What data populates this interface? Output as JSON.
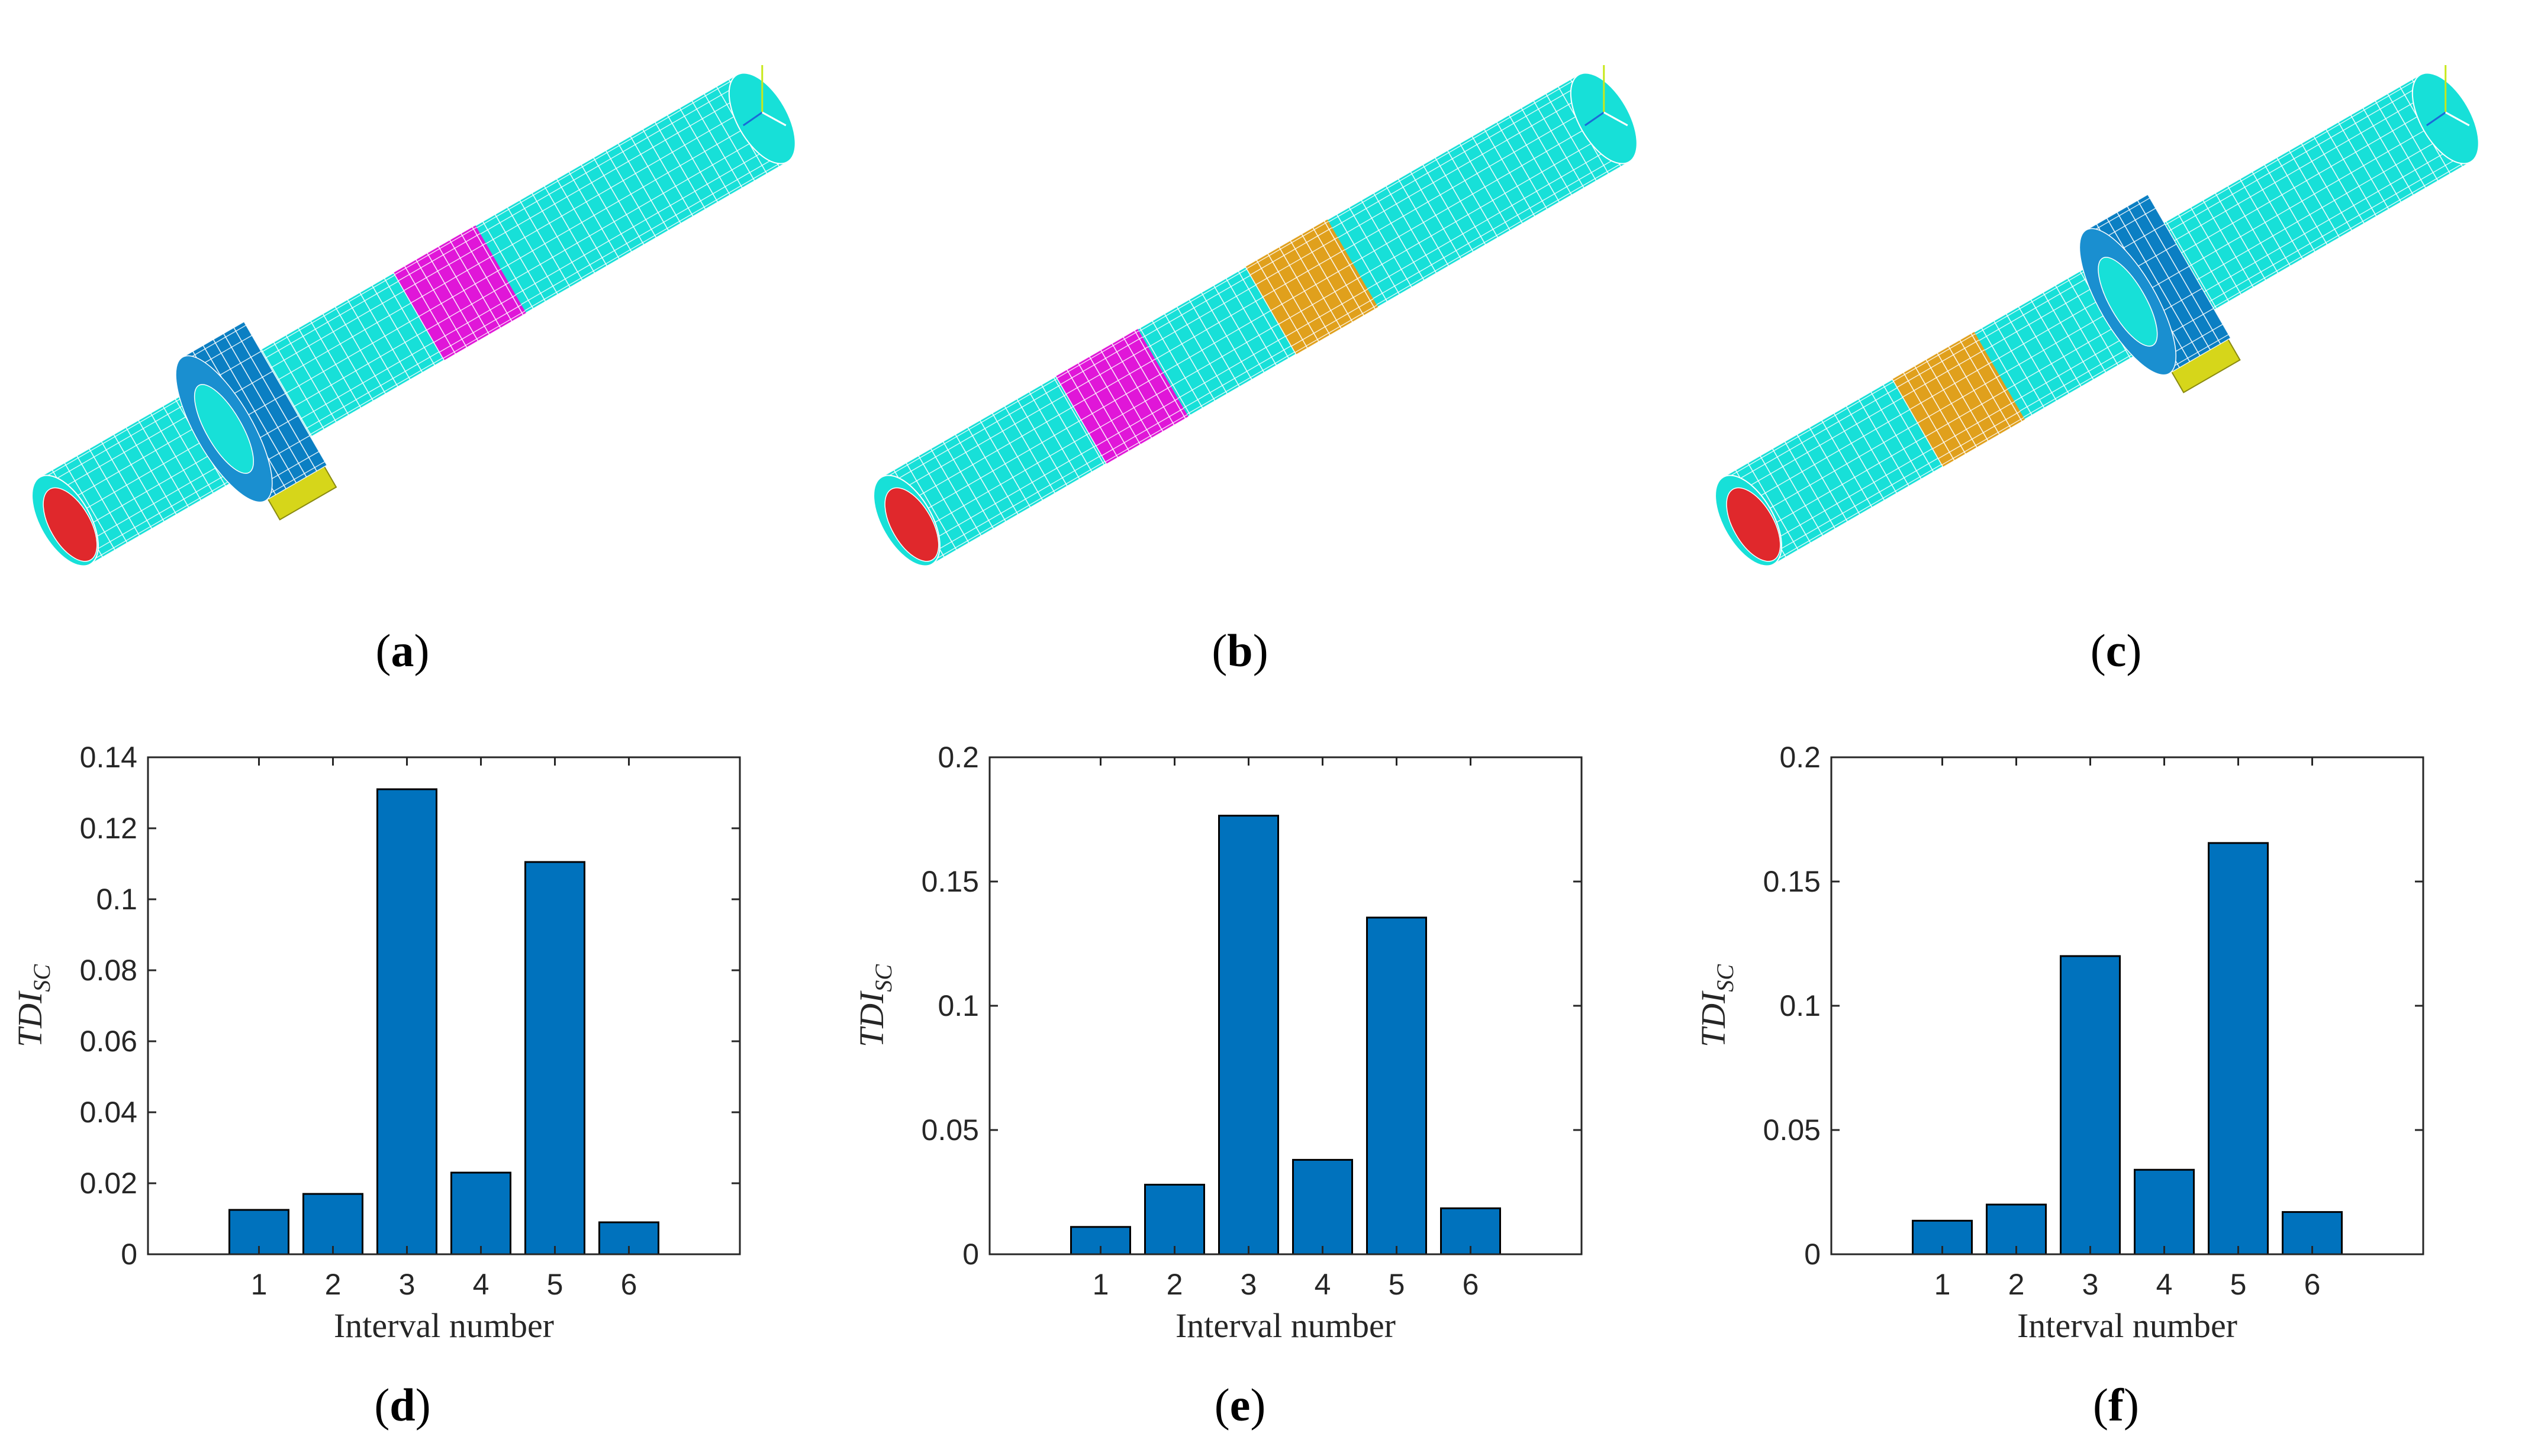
{
  "panels": [
    {
      "open": "(",
      "letter": "a",
      "close": ")"
    },
    {
      "open": "(",
      "letter": "b",
      "close": ")"
    },
    {
      "open": "(",
      "letter": "c",
      "close": ")"
    },
    {
      "open": "(",
      "letter": "d",
      "close": ")"
    },
    {
      "open": "(",
      "letter": "e",
      "close": ")"
    },
    {
      "open": "(",
      "letter": "f",
      "close": ")"
    }
  ],
  "colors": {
    "pipe": "#17e0d8",
    "pipe_mesh": "#ffffff",
    "clamp": "#0b7fc3",
    "support": "#d6d61a",
    "end_face": "#e0282c",
    "damage_magenta": "#e016d8",
    "damage_orange": "#e0a01c",
    "bar": "#0072bd"
  },
  "chart_data": [
    {
      "type": "bar",
      "categories": [
        "1",
        "2",
        "3",
        "4",
        "5",
        "6"
      ],
      "values": [
        0.0125,
        0.017,
        0.131,
        0.023,
        0.1105,
        0.009
      ],
      "xlabel": "Interval number",
      "ylabel_main": "TDI",
      "ylabel_sub": "SC",
      "ylim": [
        0,
        0.14
      ],
      "yticks": [
        0,
        0.02,
        0.04,
        0.06,
        0.08,
        0.1,
        0.12,
        0.14
      ],
      "ytick_labels": [
        "0",
        "0.02",
        "0.04",
        "0.06",
        "0.08",
        "0.1",
        "0.12",
        "0.14"
      ],
      "xlim": [
        -0.5,
        7.5
      ],
      "grid": false
    },
    {
      "type": "bar",
      "categories": [
        "1",
        "2",
        "3",
        "4",
        "5",
        "6"
      ],
      "values": [
        0.011,
        0.028,
        0.1765,
        0.038,
        0.1355,
        0.0185
      ],
      "xlabel": "Interval number",
      "ylabel_main": "TDI",
      "ylabel_sub": "SC",
      "ylim": [
        0,
        0.2
      ],
      "yticks": [
        0,
        0.05,
        0.1,
        0.15,
        0.2
      ],
      "ytick_labels": [
        "0",
        "0.05",
        "0.1",
        "0.15",
        "0.2"
      ],
      "xlim": [
        -0.5,
        7.5
      ],
      "grid": false
    },
    {
      "type": "bar",
      "categories": [
        "1",
        "2",
        "3",
        "4",
        "5",
        "6"
      ],
      "values": [
        0.0135,
        0.02,
        0.12,
        0.034,
        0.1655,
        0.017
      ],
      "xlabel": "Interval number",
      "ylabel_main": "TDI",
      "ylabel_sub": "SC",
      "ylim": [
        0,
        0.2
      ],
      "yticks": [
        0,
        0.05,
        0.1,
        0.15,
        0.2
      ],
      "ytick_labels": [
        "0",
        "0.05",
        "0.1",
        "0.15",
        "0.2"
      ],
      "xlim": [
        -0.5,
        7.5
      ],
      "grid": false
    }
  ]
}
